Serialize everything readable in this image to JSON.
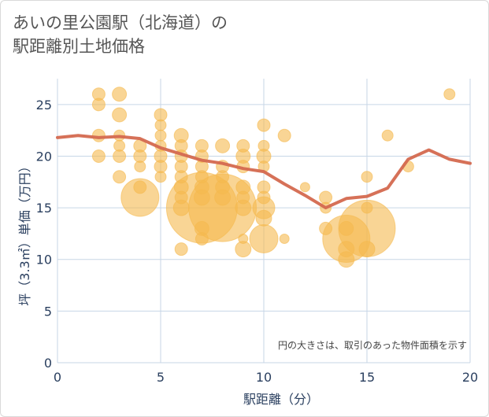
{
  "title_line1": "あいの里公園駅（北海道）の",
  "title_line2": "駅距離別土地価格",
  "colors": {
    "bubble": "#f5b94f",
    "line": "#d4694f",
    "grid": "#c7d6e6",
    "axis_text": "#2a3f5f"
  },
  "chart_data": {
    "type": "scatter",
    "xlabel": "駅距離（分）",
    "ylabel": "坪（3.3㎡）単価（万円）",
    "xlim": [
      0,
      20
    ],
    "ylim": [
      0,
      27.5
    ],
    "xticks": [
      0,
      5,
      10,
      15,
      20
    ],
    "yticks": [
      0,
      5,
      10,
      15,
      20,
      25
    ],
    "grid": true,
    "note": "円の大きさは、取引のあった物件面積を示す",
    "bubbles": [
      {
        "x": 2,
        "y": 26,
        "s": 8
      },
      {
        "x": 2,
        "y": 25,
        "s": 8
      },
      {
        "x": 2,
        "y": 22,
        "s": 8
      },
      {
        "x": 2,
        "y": 20,
        "s": 8
      },
      {
        "x": 3,
        "y": 26,
        "s": 9
      },
      {
        "x": 3,
        "y": 24,
        "s": 9
      },
      {
        "x": 3,
        "y": 22,
        "s": 7
      },
      {
        "x": 3,
        "y": 21,
        "s": 7
      },
      {
        "x": 3,
        "y": 20,
        "s": 8
      },
      {
        "x": 3,
        "y": 18,
        "s": 8
      },
      {
        "x": 4,
        "y": 21,
        "s": 8
      },
      {
        "x": 4,
        "y": 20,
        "s": 8
      },
      {
        "x": 4,
        "y": 19,
        "s": 7
      },
      {
        "x": 4,
        "y": 17,
        "s": 8
      },
      {
        "x": 4,
        "y": 16,
        "s": 24
      },
      {
        "x": 5,
        "y": 24,
        "s": 8
      },
      {
        "x": 5,
        "y": 23,
        "s": 7
      },
      {
        "x": 5,
        "y": 22,
        "s": 7
      },
      {
        "x": 5,
        "y": 21,
        "s": 7
      },
      {
        "x": 5,
        "y": 20,
        "s": 8
      },
      {
        "x": 5,
        "y": 19,
        "s": 8
      },
      {
        "x": 5,
        "y": 18,
        "s": 7
      },
      {
        "x": 6,
        "y": 22,
        "s": 9
      },
      {
        "x": 6,
        "y": 21,
        "s": 8
      },
      {
        "x": 6,
        "y": 20,
        "s": 8
      },
      {
        "x": 6,
        "y": 19,
        "s": 8
      },
      {
        "x": 6,
        "y": 18,
        "s": 8
      },
      {
        "x": 6,
        "y": 17,
        "s": 9
      },
      {
        "x": 6,
        "y": 16,
        "s": 8
      },
      {
        "x": 6,
        "y": 15,
        "s": 10
      },
      {
        "x": 6,
        "y": 11,
        "s": 8
      },
      {
        "x": 7,
        "y": 21,
        "s": 8
      },
      {
        "x": 7,
        "y": 20,
        "s": 8
      },
      {
        "x": 7,
        "y": 19,
        "s": 8
      },
      {
        "x": 7,
        "y": 18,
        "s": 8
      },
      {
        "x": 7,
        "y": 17,
        "s": 9
      },
      {
        "x": 7,
        "y": 16,
        "s": 10
      },
      {
        "x": 7,
        "y": 15,
        "s": 45
      },
      {
        "x": 7,
        "y": 13,
        "s": 9
      },
      {
        "x": 7,
        "y": 12,
        "s": 8
      },
      {
        "x": 8,
        "y": 21,
        "s": 9
      },
      {
        "x": 8,
        "y": 19,
        "s": 8
      },
      {
        "x": 8,
        "y": 18,
        "s": 8
      },
      {
        "x": 8,
        "y": 17,
        "s": 9
      },
      {
        "x": 8,
        "y": 16,
        "s": 10
      },
      {
        "x": 8,
        "y": 15,
        "s": 43
      },
      {
        "x": 9,
        "y": 21,
        "s": 8
      },
      {
        "x": 9,
        "y": 20,
        "s": 9
      },
      {
        "x": 9,
        "y": 19,
        "s": 8
      },
      {
        "x": 9,
        "y": 17,
        "s": 9
      },
      {
        "x": 9,
        "y": 16,
        "s": 8
      },
      {
        "x": 9,
        "y": 15,
        "s": 10
      },
      {
        "x": 9,
        "y": 12,
        "s": 6
      },
      {
        "x": 9,
        "y": 11,
        "s": 10
      },
      {
        "x": 10,
        "y": 23,
        "s": 8
      },
      {
        "x": 10,
        "y": 21,
        "s": 7
      },
      {
        "x": 10,
        "y": 20,
        "s": 9
      },
      {
        "x": 10,
        "y": 19,
        "s": 7
      },
      {
        "x": 10,
        "y": 17,
        "s": 8
      },
      {
        "x": 10,
        "y": 16,
        "s": 8
      },
      {
        "x": 10,
        "y": 15,
        "s": 14
      },
      {
        "x": 10,
        "y": 14,
        "s": 10
      },
      {
        "x": 10,
        "y": 12,
        "s": 18
      },
      {
        "x": 11,
        "y": 22,
        "s": 8
      },
      {
        "x": 11,
        "y": 12,
        "s": 6
      },
      {
        "x": 12,
        "y": 17,
        "s": 6
      },
      {
        "x": 13,
        "y": 16,
        "s": 8
      },
      {
        "x": 13,
        "y": 15,
        "s": 7
      },
      {
        "x": 13,
        "y": 13,
        "s": 8
      },
      {
        "x": 14,
        "y": 13,
        "s": 9
      },
      {
        "x": 14,
        "y": 12,
        "s": 30
      },
      {
        "x": 14,
        "y": 11,
        "s": 10
      },
      {
        "x": 14,
        "y": 10,
        "s": 10
      },
      {
        "x": 15,
        "y": 18,
        "s": 7
      },
      {
        "x": 15,
        "y": 15,
        "s": 7
      },
      {
        "x": 15,
        "y": 13,
        "s": 36
      },
      {
        "x": 15,
        "y": 11,
        "s": 10
      },
      {
        "x": 16,
        "y": 22,
        "s": 7
      },
      {
        "x": 17,
        "y": 19,
        "s": 7
      },
      {
        "x": 19,
        "y": 26,
        "s": 7
      }
    ],
    "trend": {
      "x": [
        0,
        1,
        2,
        3,
        4,
        5,
        6,
        7,
        8,
        9,
        10,
        11,
        12,
        13,
        14,
        15,
        16,
        17,
        18,
        19,
        20
      ],
      "y": [
        21.8,
        22.0,
        21.8,
        21.9,
        21.7,
        20.8,
        20.2,
        19.6,
        19.3,
        18.8,
        18.5,
        17.3,
        16.2,
        15.0,
        15.9,
        16.1,
        16.9,
        19.7,
        20.6,
        19.7,
        19.3
      ]
    }
  }
}
